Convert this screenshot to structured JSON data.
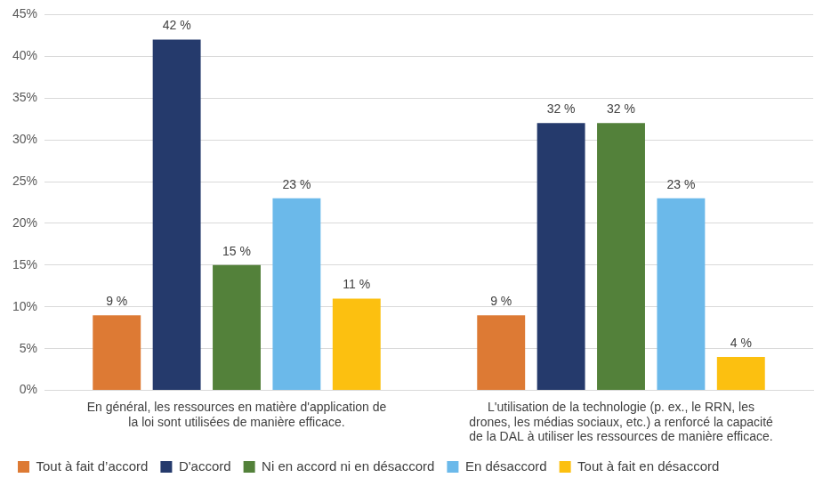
{
  "chart_data": {
    "type": "bar",
    "categories": [
      "En général, les ressources en matière d'application de la loi sont utilisées de manière efficace.",
      "L'utilisation de la technologie (p. ex., le RRN, les drones, les médias sociaux, etc.) a renforcé la capacité de la DAL à utiliser les ressources de manière efficace."
    ],
    "series": [
      {
        "name": "Tout à fait d’accord",
        "color": "#dd7a34",
        "values": [
          9,
          9
        ],
        "value_labels": [
          "9 %",
          "9 %"
        ]
      },
      {
        "name": "D'accord",
        "color": "#253a6c",
        "values": [
          42,
          32
        ],
        "value_labels": [
          "42 %",
          "32 %"
        ]
      },
      {
        "name": "Ni en accord ni en désaccord",
        "color": "#53813a",
        "values": [
          15,
          32
        ],
        "value_labels": [
          "15 %",
          "32 %"
        ]
      },
      {
        "name": "En désaccord",
        "color": "#6bb9ea",
        "values": [
          23,
          23
        ],
        "value_labels": [
          "23 %",
          "23 %"
        ]
      },
      {
        "name": "Tout à fait en désaccord",
        "color": "#fcc010",
        "values": [
          11,
          4
        ],
        "value_labels": [
          "11 %",
          "4 %"
        ]
      }
    ],
    "ylim": [
      0,
      45
    ],
    "yticks": [
      {
        "value": 0,
        "label": "0%"
      },
      {
        "value": 5,
        "label": "5%"
      },
      {
        "value": 10,
        "label": "10%"
      },
      {
        "value": 15,
        "label": "15%"
      },
      {
        "value": 20,
        "label": "20%"
      },
      {
        "value": 25,
        "label": "25%"
      },
      {
        "value": 30,
        "label": "30%"
      },
      {
        "value": 35,
        "label": "35%"
      },
      {
        "value": 40,
        "label": "40%"
      },
      {
        "value": 45,
        "label": "45%"
      }
    ],
    "grid": true,
    "legend": "bottom",
    "data_labels": true
  }
}
